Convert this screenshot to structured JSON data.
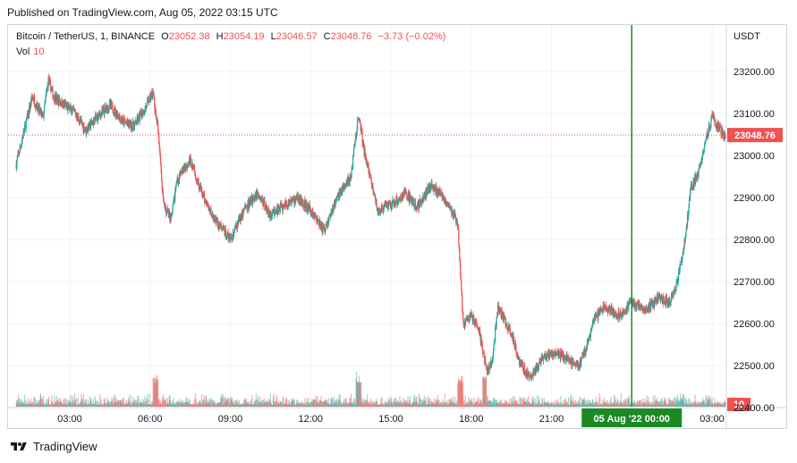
{
  "header": {
    "published": "Published on TradingView.com, Aug 05, 2022 03:15 UTC"
  },
  "legend": {
    "symbol": "Bitcoin / TetherUS, 1, BINANCE",
    "open_label": "O",
    "open": "23052.38",
    "high_label": "H",
    "high": "23054.19",
    "low_label": "L",
    "low": "23046.57",
    "close_label": "C",
    "close": "23048.76",
    "change": "−3.73 (−0.02%)",
    "vol_label": "Vol",
    "vol_value": "10"
  },
  "footer": {
    "brand": "TradingView"
  },
  "colors": {
    "up": "#26a69a",
    "down": "#ef5350",
    "crosshair": "#1b8a24",
    "grid": "#f0f3fa"
  },
  "chart_data": {
    "type": "candlestick",
    "y_unit": "USDT",
    "ylim": [
      22300,
      23280
    ],
    "y_ticks": [
      22400,
      22500,
      22600,
      22700,
      22800,
      22900,
      23000,
      23100,
      23200
    ],
    "y_tick_labels": [
      "22400.00",
      "22500.00",
      "22600.00",
      "22700.00",
      "22800.00",
      "22900.00",
      "23000.00",
      "23100.00",
      "23200.00"
    ],
    "x_tick_labels": [
      "03:00",
      "06:00",
      "09:00",
      "12:00",
      "15:00",
      "18:00",
      "21:00",
      "03:00"
    ],
    "x_ticks_hours": [
      3,
      6,
      9,
      12,
      15,
      18,
      21,
      27
    ],
    "x_range_hours": [
      1.0,
      28.7
    ],
    "crosshair_label": "05 Aug '22   00:00",
    "crosshair_hour": 24,
    "last_price": 23048.76,
    "last_price_label": "23048.76",
    "volume_last_label": "10",
    "price_path": [
      [
        1.0,
        22980
      ],
      [
        1.3,
        23060
      ],
      [
        1.6,
        23140
      ],
      [
        2.0,
        23090
      ],
      [
        2.2,
        23180
      ],
      [
        2.4,
        23140
      ],
      [
        2.8,
        23120
      ],
      [
        3.2,
        23100
      ],
      [
        3.6,
        23060
      ],
      [
        4.0,
        23090
      ],
      [
        4.5,
        23120
      ],
      [
        5.0,
        23080
      ],
      [
        5.4,
        23070
      ],
      [
        5.8,
        23110
      ],
      [
        6.1,
        23150
      ],
      [
        6.3,
        23060
      ],
      [
        6.5,
        22880
      ],
      [
        6.8,
        22850
      ],
      [
        7.0,
        22940
      ],
      [
        7.5,
        22990
      ],
      [
        8.0,
        22900
      ],
      [
        8.5,
        22840
      ],
      [
        9.0,
        22800
      ],
      [
        9.5,
        22870
      ],
      [
        10.0,
        22910
      ],
      [
        10.5,
        22860
      ],
      [
        11.0,
        22880
      ],
      [
        11.5,
        22900
      ],
      [
        12.0,
        22870
      ],
      [
        12.5,
        22820
      ],
      [
        13.0,
        22900
      ],
      [
        13.5,
        22950
      ],
      [
        13.8,
        23100
      ],
      [
        14.0,
        23010
      ],
      [
        14.5,
        22870
      ],
      [
        15.0,
        22880
      ],
      [
        15.5,
        22910
      ],
      [
        16.0,
        22880
      ],
      [
        16.5,
        22930
      ],
      [
        17.0,
        22900
      ],
      [
        17.5,
        22840
      ],
      [
        17.7,
        22600
      ],
      [
        18.0,
        22620
      ],
      [
        18.3,
        22580
      ],
      [
        18.6,
        22480
      ],
      [
        18.8,
        22520
      ],
      [
        19.0,
        22640
      ],
      [
        19.3,
        22600
      ],
      [
        19.6,
        22560
      ],
      [
        19.8,
        22510
      ],
      [
        20.2,
        22470
      ],
      [
        20.6,
        22510
      ],
      [
        21.0,
        22530
      ],
      [
        21.5,
        22520
      ],
      [
        22.0,
        22500
      ],
      [
        22.3,
        22540
      ],
      [
        22.6,
        22610
      ],
      [
        23.0,
        22640
      ],
      [
        23.5,
        22620
      ],
      [
        24.0,
        22650
      ],
      [
        24.5,
        22630
      ],
      [
        25.0,
        22660
      ],
      [
        25.4,
        22650
      ],
      [
        25.7,
        22700
      ],
      [
        26.0,
        22800
      ],
      [
        26.2,
        22920
      ],
      [
        26.5,
        22960
      ],
      [
        26.8,
        23050
      ],
      [
        27.0,
        23090
      ],
      [
        27.3,
        23060
      ],
      [
        27.5,
        23048.76
      ]
    ]
  }
}
